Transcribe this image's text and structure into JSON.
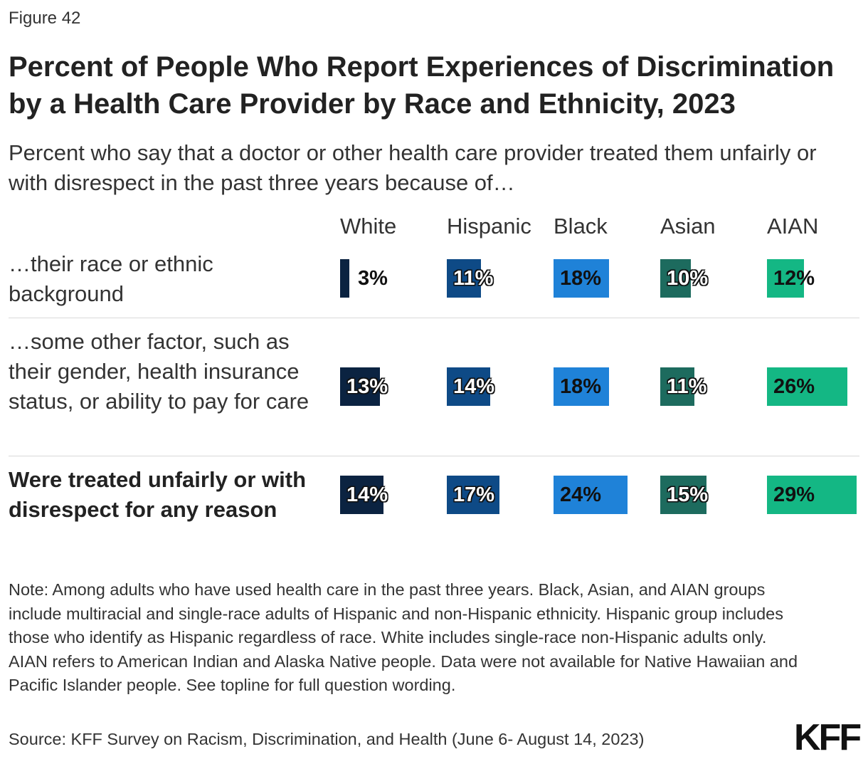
{
  "figure_label": "Figure 42",
  "title": "Percent of People Who Report Experiences of Discrimination by a Health Care Provider by Race and Ethnicity, 2023",
  "subtitle": "Percent who say that a doctor or other health care provider treated them unfairly or with disrespect in the past three years because of…",
  "chart_data": {
    "type": "bar",
    "categories": [
      "…their race or ethnic background",
      "…some other factor, such as their gender, health insurance status, or ability to pay for care",
      "Were treated unfairly or with disrespect for any reason"
    ],
    "series": [
      {
        "name": "White",
        "color": "#0b2341",
        "values": [
          3,
          13,
          14
        ]
      },
      {
        "name": "Hispanic",
        "color": "#0e4a86",
        "values": [
          11,
          14,
          17
        ]
      },
      {
        "name": "Black",
        "color": "#1f82d8",
        "values": [
          18,
          18,
          24
        ]
      },
      {
        "name": "Asian",
        "color": "#1d6b5e",
        "values": [
          10,
          11,
          15
        ]
      },
      {
        "name": "AIAN",
        "color": "#14b784",
        "values": [
          12,
          26,
          29
        ]
      }
    ],
    "value_suffix": "%",
    "xlim": [
      0,
      30
    ]
  },
  "note": "Note: Among adults who have used health care in the past three years. Black, Asian, and AIAN groups include multiracial and single-race adults of Hispanic and non-Hispanic ethnicity. Hispanic group includes those who identify as Hispanic regardless of race. White includes single-race non-Hispanic adults only. AIAN refers to American Indian and Alaska Native people. Data were not available for Native Hawaiian and Pacific Islander people. See topline for full question wording.",
  "source": "Source: KFF Survey on Racism, Discrimination, and Health (June 6- August 14, 2023)",
  "logo": "KFF"
}
